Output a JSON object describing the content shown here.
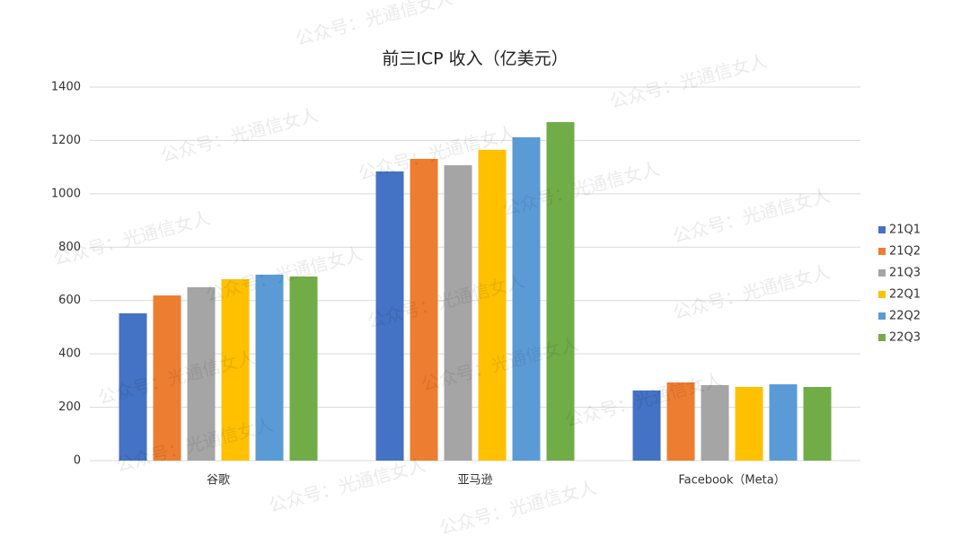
{
  "chart_data": {
    "type": "bar",
    "title": "前三ICP 收入（亿美元）",
    "watermark": "公众号：光通信女人",
    "categories": [
      "谷歌",
      "亚马逊",
      "Facebook（Meta）"
    ],
    "series": [
      {
        "name": "21Q1",
        "color": "#4472c4",
        "values": [
          552,
          1084,
          263
        ]
      },
      {
        "name": "21Q2",
        "color": "#ed7d31",
        "values": [
          619,
          1131,
          293
        ]
      },
      {
        "name": "21Q3",
        "color": "#a5a5a5",
        "values": [
          650,
          1107,
          283
        ]
      },
      {
        "name": "22Q1",
        "color": "#ffc000",
        "values": [
          680,
          1165,
          276
        ]
      },
      {
        "name": "22Q2",
        "color": "#5b9bd5",
        "values": [
          697,
          1212,
          286
        ]
      },
      {
        "name": "22Q3",
        "color": "#70ad47",
        "values": [
          690,
          1269,
          276
        ]
      }
    ],
    "ylim": [
      0,
      1400
    ],
    "yticks": [
      0,
      200,
      400,
      600,
      800,
      1000,
      1200,
      1400
    ],
    "grid": true,
    "legend": "right"
  }
}
